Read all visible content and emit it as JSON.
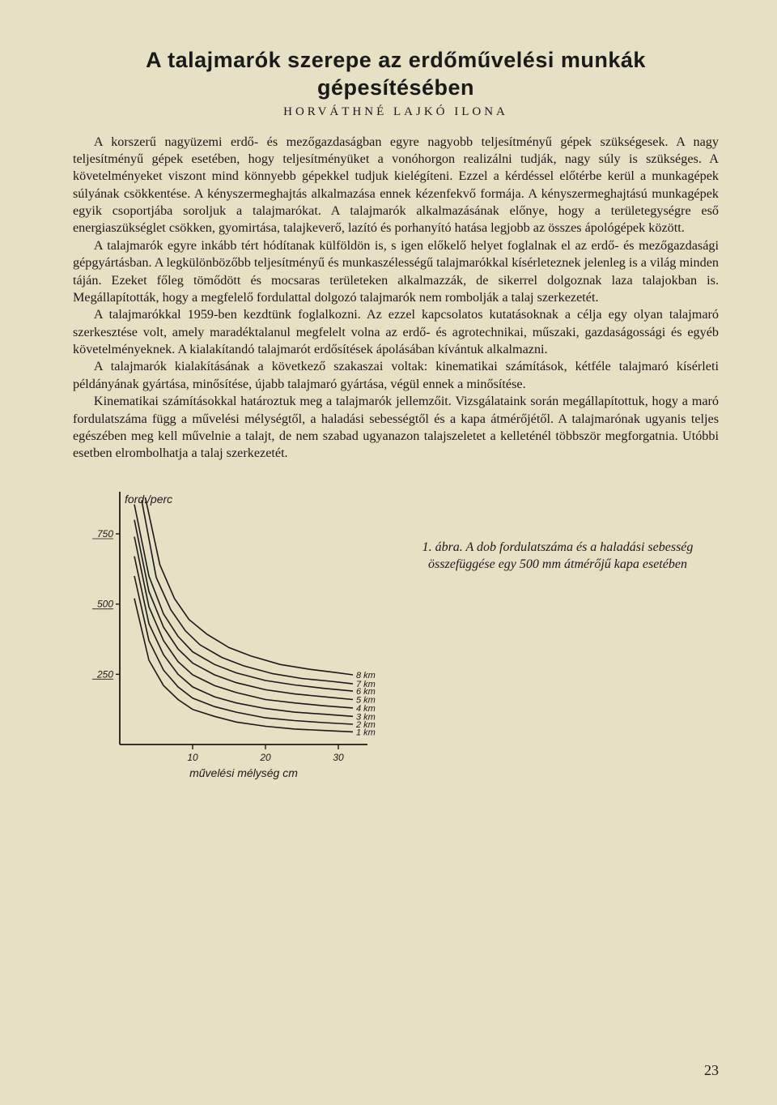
{
  "title_line1": "A talajmarók szerepe az erdőművelési munkák",
  "title_line2": "gépesítésében",
  "author": "HORVÁTHNÉ LAJKÓ ILONA",
  "paragraphs": [
    "A korszerű nagyüzemi erdő- és mezőgazdaságban egyre nagyobb teljesítményű gépek szükségesek. A nagy teljesítményű gépek esetében, hogy teljesítményüket a vonóhorgon realizálni tudják, nagy súly is szükséges. A követelményeket viszont mind könnyebb gépekkel tudjuk kielégíteni. Ezzel a kérdéssel előtérbe kerül a munkagépek súlyának csökkentése. A kényszermeghajtás alkalmazása ennek kézenfekvő formája. A kényszermeghajtású munkagépek egyik csoportjába soroljuk a talajmarókat. A talajmarók alkalmazásának előnye, hogy a területegységre eső energiaszükséglet csökken, gyomirtása, talajkeverő, lazító és porhanyító hatása legjobb az összes ápológépek között.",
    "A talajmarók egyre inkább tért hódítanak külföldön is, s igen előkelő helyet foglalnak el az erdő- és mezőgazdasági gépgyártásban. A legkülönbözőbb teljesítményű és munkaszélességű talajmarókkal kísérleteznek jelenleg is a világ minden táján. Ezeket főleg tömődött és mocsaras területeken alkalmazzák, de sikerrel dolgoznak laza talajokban is. Megállapították, hogy a megfelelő fordulattal dolgozó talajmarók nem rombolják a talaj szerkezetét.",
    "A talajmarókkal 1959-ben kezdtünk foglalkozni. Az ezzel kapcsolatos kutatásoknak a célja egy olyan talajmaró szerkesztése volt, amely maradéktalanul megfelelt volna az erdő- és agrotechnikai, műszaki, gazdaságossági és egyéb követelményeknek. A kialakítandó talajmarót erdősítések ápolásában kívántuk alkalmazni.",
    "A talajmarók kialakításának a következő szakaszai voltak: kinematikai számítások, kétféle talajmaró kísérleti példányának gyártása, minősítése, újabb talajmaró gyártása, végül ennek a minősítése.",
    "Kinematikai számításokkal határoztuk meg a talajmarók jellemzőit. Vizsgálataink során megállapítottuk, hogy a maró fordulatszáma függ a művelési mélységtől, a haladási sebességtől és a kapa átmérőjétől. A talajmarónak ugyanis teljes egészében meg kell művelnie a talajt, de nem szabad ugyanazon talajszeletet a kelleténél többször megforgatnia. Utóbbi esetben elrombolhatja a talaj szerkezetét."
  ],
  "caption": "1. ábra. A dob fordulatszáma és a haladási sebesség összefüggése egy 500 mm átmérőjű kapa esetében",
  "page_number": "23",
  "chart": {
    "type": "line",
    "y_label": "ford./perc",
    "x_label": "művelési mélység  cm",
    "y_ticks": [
      250,
      500,
      750
    ],
    "x_ticks": [
      10,
      20,
      30
    ],
    "xlim": [
      0,
      34
    ],
    "ylim": [
      0,
      900
    ],
    "background_color": "#e6e0c4",
    "axis_color": "#1a1a1a",
    "line_color": "#1a1a1a",
    "line_width": 1.6,
    "font_size_axis": 12,
    "font_size_label": 14,
    "series": [
      {
        "label": "1 km",
        "points": [
          [
            2,
            520
          ],
          [
            4,
            300
          ],
          [
            6,
            210
          ],
          [
            8,
            160
          ],
          [
            10,
            125
          ],
          [
            13,
            100
          ],
          [
            16,
            80
          ],
          [
            20,
            65
          ],
          [
            24,
            55
          ],
          [
            28,
            50
          ],
          [
            32,
            45
          ]
        ]
      },
      {
        "label": "2 km",
        "points": [
          [
            2,
            600
          ],
          [
            4,
            370
          ],
          [
            6,
            265
          ],
          [
            8,
            205
          ],
          [
            10,
            165
          ],
          [
            13,
            135
          ],
          [
            16,
            115
          ],
          [
            20,
            95
          ],
          [
            24,
            85
          ],
          [
            28,
            78
          ],
          [
            32,
            72
          ]
        ]
      },
      {
        "label": "3 km",
        "points": [
          [
            2,
            670
          ],
          [
            4,
            430
          ],
          [
            6,
            320
          ],
          [
            8,
            250
          ],
          [
            10,
            205
          ],
          [
            13,
            170
          ],
          [
            16,
            148
          ],
          [
            20,
            128
          ],
          [
            24,
            115
          ],
          [
            28,
            108
          ],
          [
            32,
            100
          ]
        ]
      },
      {
        "label": "4 km",
        "points": [
          [
            2,
            740
          ],
          [
            4,
            490
          ],
          [
            6,
            370
          ],
          [
            8,
            295
          ],
          [
            10,
            248
          ],
          [
            13,
            210
          ],
          [
            16,
            185
          ],
          [
            20,
            160
          ],
          [
            24,
            148
          ],
          [
            28,
            138
          ],
          [
            32,
            130
          ]
        ]
      },
      {
        "label": "5 km",
        "points": [
          [
            2,
            800
          ],
          [
            4,
            545
          ],
          [
            6,
            418
          ],
          [
            8,
            340
          ],
          [
            10,
            290
          ],
          [
            13,
            248
          ],
          [
            16,
            220
          ],
          [
            20,
            195
          ],
          [
            24,
            180
          ],
          [
            28,
            170
          ],
          [
            32,
            160
          ]
        ]
      },
      {
        "label": "6 km",
        "points": [
          [
            2,
            855
          ],
          [
            4,
            600
          ],
          [
            6,
            465
          ],
          [
            8,
            385
          ],
          [
            10,
            330
          ],
          [
            13,
            285
          ],
          [
            16,
            255
          ],
          [
            20,
            228
          ],
          [
            24,
            212
          ],
          [
            28,
            200
          ],
          [
            32,
            190
          ]
        ]
      },
      {
        "label": "7 km",
        "points": [
          [
            3,
            870
          ],
          [
            5,
            595
          ],
          [
            7,
            480
          ],
          [
            9,
            405
          ],
          [
            11,
            355
          ],
          [
            14,
            310
          ],
          [
            17,
            280
          ],
          [
            21,
            252
          ],
          [
            25,
            235
          ],
          [
            29,
            225
          ],
          [
            32,
            216
          ]
        ]
      },
      {
        "label": "8 km",
        "points": [
          [
            3.5,
            880
          ],
          [
            5.5,
            640
          ],
          [
            7.5,
            520
          ],
          [
            9.5,
            445
          ],
          [
            12,
            392
          ],
          [
            15,
            345
          ],
          [
            18,
            315
          ],
          [
            22,
            285
          ],
          [
            26,
            268
          ],
          [
            30,
            255
          ],
          [
            32,
            248
          ]
        ]
      }
    ]
  }
}
